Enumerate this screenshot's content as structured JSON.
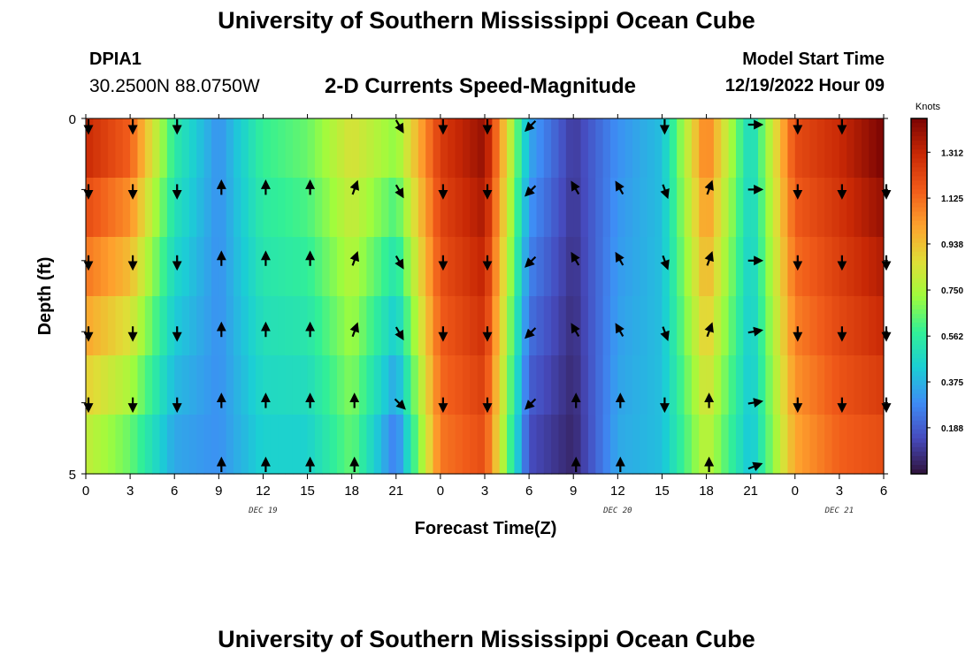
{
  "header": {
    "title": "University of Southern Mississippi Ocean Cube",
    "station": "DPIA1",
    "coords": "30.2500N  88.0750W",
    "subtitle": "2-D Currents Speed-Magnitude",
    "start_label": "Model Start Time",
    "start_value": "12/19/2022 Hour 09"
  },
  "footer": {
    "title": "University of Southern Mississippi Ocean Cube"
  },
  "chart_data": {
    "type": "heatmap",
    "title": "2-D Currents Speed-Magnitude",
    "xlabel": "Forecast Time(Z)",
    "ylabel": "Depth (ft)",
    "ylim": [
      0,
      5
    ],
    "y_tick_labels": [
      "0",
      "5"
    ],
    "x_tick_labels": [
      "0",
      "3",
      "6",
      "9",
      "12",
      "15",
      "18",
      "21",
      "0",
      "3",
      "6",
      "9",
      "12",
      "15",
      "18",
      "21",
      "0",
      "3",
      "6"
    ],
    "date_labels": [
      {
        "text": "DEC 19",
        "at_tick": 4
      },
      {
        "text": "DEC 20",
        "at_tick": 12
      },
      {
        "text": "DEC 21",
        "at_tick": 17
      }
    ],
    "colorbar": {
      "title": "Knots",
      "ticks": [
        "1.312",
        "1.125",
        "0.938",
        "0.750",
        "0.562",
        "0.375",
        "0.188"
      ],
      "tick_values": [
        1.312,
        1.125,
        0.938,
        0.75,
        0.562,
        0.375,
        0.188
      ],
      "range": [
        0.0,
        1.45
      ]
    },
    "time_hours": [
      0,
      3,
      6,
      9,
      12,
      15,
      18,
      21,
      24,
      27,
      30,
      33,
      36,
      39,
      42,
      45,
      48,
      51,
      54
    ],
    "depth_rows": 6,
    "speed_top": [
      1.3,
      1.15,
      0.55,
      0.3,
      0.58,
      0.65,
      0.85,
      0.7,
      1.25,
      1.4,
      0.35,
      0.1,
      0.3,
      0.4,
      1.1,
      0.45,
      1.2,
      1.3,
      1.45
    ],
    "speed_bottom": [
      0.8,
      0.65,
      0.35,
      0.3,
      0.45,
      0.45,
      0.65,
      0.25,
      1.1,
      1.2,
      0.15,
      0.05,
      0.35,
      0.4,
      0.8,
      0.4,
      1.0,
      1.15,
      1.2
    ],
    "arrow_directions_deg": [
      [
        180,
        180,
        180,
        null,
        null,
        null,
        null,
        150,
        180,
        180,
        225,
        null,
        null,
        180,
        null,
        90,
        180,
        180,
        null
      ],
      [
        180,
        180,
        180,
        0,
        0,
        0,
        20,
        150,
        180,
        180,
        225,
        330,
        330,
        160,
        20,
        90,
        180,
        180,
        180
      ],
      [
        180,
        180,
        180,
        0,
        0,
        0,
        20,
        150,
        180,
        180,
        225,
        330,
        330,
        160,
        20,
        90,
        180,
        180,
        180
      ],
      [
        180,
        180,
        180,
        0,
        0,
        0,
        20,
        150,
        180,
        180,
        225,
        330,
        330,
        160,
        20,
        80,
        180,
        180,
        180
      ],
      [
        180,
        180,
        180,
        0,
        0,
        0,
        0,
        135,
        180,
        180,
        225,
        0,
        0,
        180,
        0,
        80,
        180,
        180,
        180
      ],
      [
        null,
        null,
        null,
        0,
        0,
        0,
        0,
        null,
        null,
        null,
        null,
        0,
        0,
        null,
        0,
        70,
        null,
        null,
        null
      ]
    ]
  }
}
